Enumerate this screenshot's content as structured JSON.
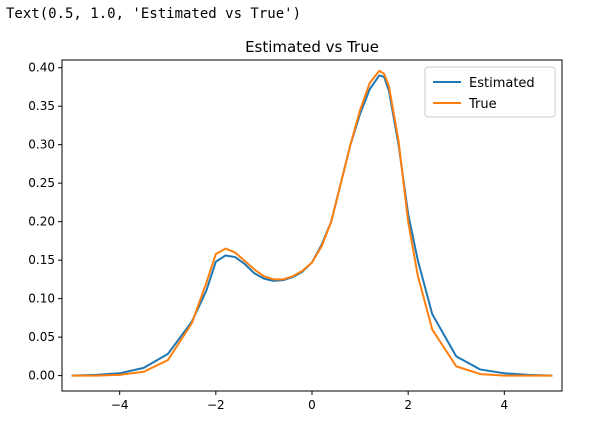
{
  "output_text": "Text(0.5, 1.0, 'Estimated vs True')",
  "colors": {
    "estimated": "#1f77b4",
    "true": "#ff7f0e",
    "axis": "#000000"
  },
  "chart_data": {
    "type": "line",
    "title": "Estimated vs True",
    "xlabel": "",
    "ylabel": "",
    "xlim": [
      -5.2,
      5.2
    ],
    "ylim": [
      -0.02,
      0.41
    ],
    "x_ticks": [
      -4,
      -2,
      0,
      2,
      4
    ],
    "x_tick_labels": [
      "−4",
      "−2",
      "0",
      "2",
      "4"
    ],
    "y_ticks": [
      0.0,
      0.05,
      0.1,
      0.15,
      0.2,
      0.25,
      0.3,
      0.35,
      0.4
    ],
    "y_tick_labels": [
      "0.00",
      "0.05",
      "0.10",
      "0.15",
      "0.20",
      "0.25",
      "0.30",
      "0.35",
      "0.40"
    ],
    "grid": false,
    "legend_position": "top-right",
    "series": [
      {
        "name": "Estimated",
        "x": [
          -5.0,
          -4.5,
          -4.0,
          -3.5,
          -3.0,
          -2.5,
          -2.2,
          -2.0,
          -1.8,
          -1.6,
          -1.4,
          -1.2,
          -1.0,
          -0.8,
          -0.6,
          -0.4,
          -0.2,
          0.0,
          0.2,
          0.4,
          0.6,
          0.8,
          1.0,
          1.2,
          1.4,
          1.5,
          1.6,
          1.8,
          2.0,
          2.2,
          2.5,
          3.0,
          3.5,
          4.0,
          4.5,
          5.0
        ],
        "y": [
          0.0,
          0.001,
          0.003,
          0.01,
          0.028,
          0.07,
          0.11,
          0.148,
          0.156,
          0.154,
          0.145,
          0.133,
          0.126,
          0.123,
          0.124,
          0.128,
          0.135,
          0.147,
          0.17,
          0.2,
          0.25,
          0.3,
          0.34,
          0.372,
          0.39,
          0.388,
          0.37,
          0.3,
          0.21,
          0.15,
          0.08,
          0.025,
          0.008,
          0.003,
          0.001,
          0.0
        ]
      },
      {
        "name": "True",
        "x": [
          -5.0,
          -4.5,
          -4.0,
          -3.5,
          -3.0,
          -2.5,
          -2.2,
          -2.0,
          -1.8,
          -1.6,
          -1.4,
          -1.2,
          -1.0,
          -0.8,
          -0.6,
          -0.4,
          -0.2,
          0.0,
          0.2,
          0.4,
          0.6,
          0.8,
          1.0,
          1.2,
          1.4,
          1.5,
          1.6,
          1.8,
          2.0,
          2.2,
          2.5,
          3.0,
          3.5,
          4.0,
          4.5,
          5.0
        ],
        "y": [
          0.0,
          0.0,
          0.001,
          0.005,
          0.02,
          0.068,
          0.12,
          0.158,
          0.165,
          0.16,
          0.149,
          0.138,
          0.129,
          0.125,
          0.125,
          0.129,
          0.136,
          0.147,
          0.168,
          0.2,
          0.25,
          0.3,
          0.345,
          0.38,
          0.396,
          0.392,
          0.376,
          0.305,
          0.2,
          0.13,
          0.06,
          0.012,
          0.002,
          0.0,
          0.0,
          0.0
        ]
      }
    ]
  }
}
